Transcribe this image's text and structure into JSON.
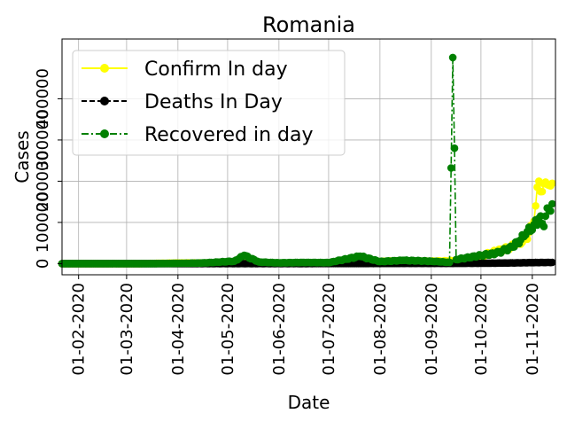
{
  "chart_data": {
    "type": "line",
    "title": "Romania",
    "xlabel": "Date",
    "ylabel": "Cases",
    "x_range": [
      "2020-01-22",
      "2020-11-15"
    ],
    "ylim": [
      -27000,
      545000
    ],
    "x_ticks": [
      {
        "date": "2020-02-01",
        "label": "01-02-2020"
      },
      {
        "date": "2020-03-01",
        "label": "01-03-2020"
      },
      {
        "date": "2020-04-01",
        "label": "01-04-2020"
      },
      {
        "date": "2020-05-01",
        "label": "01-05-2020"
      },
      {
        "date": "2020-06-01",
        "label": "01-06-2020"
      },
      {
        "date": "2020-07-01",
        "label": "01-07-2020"
      },
      {
        "date": "2020-08-01",
        "label": "01-08-2020"
      },
      {
        "date": "2020-09-01",
        "label": "01-09-2020"
      },
      {
        "date": "2020-10-01",
        "label": "01-10-2020"
      },
      {
        "date": "2020-11-01",
        "label": "01-11-2020"
      }
    ],
    "y_ticks": [
      {
        "value": 0,
        "label": "0"
      },
      {
        "value": 100000,
        "label": "100000"
      },
      {
        "value": 200000,
        "label": "200000"
      },
      {
        "value": 300000,
        "label": "300000"
      },
      {
        "value": 400000,
        "label": "400000"
      }
    ],
    "grid": true,
    "legend_position": "top-left",
    "series": [
      {
        "name": "Confirm In day",
        "color": "#ffff00",
        "line_style": "solid",
        "points": [
          [
            "2020-01-22",
            0
          ],
          [
            "2020-02-15",
            0
          ],
          [
            "2020-03-10",
            200
          ],
          [
            "2020-04-01",
            1500
          ],
          [
            "2020-04-15",
            1600
          ],
          [
            "2020-05-01",
            1200
          ],
          [
            "2020-05-15",
            900
          ],
          [
            "2020-06-01",
            800
          ],
          [
            "2020-06-15",
            900
          ],
          [
            "2020-07-01",
            2000
          ],
          [
            "2020-07-15",
            3500
          ],
          [
            "2020-08-01",
            5000
          ],
          [
            "2020-08-10",
            6500
          ],
          [
            "2020-08-20",
            5500
          ],
          [
            "2020-09-01",
            6000
          ],
          [
            "2020-09-15",
            7000
          ],
          [
            "2020-09-25",
            12000
          ],
          [
            "2020-10-01",
            18000
          ],
          [
            "2020-10-08",
            28000
          ],
          [
            "2020-10-15",
            35000
          ],
          [
            "2020-10-22",
            45000
          ],
          [
            "2020-10-28",
            60000
          ],
          [
            "2020-11-01",
            90000
          ],
          [
            "2020-11-03",
            140000
          ],
          [
            "2020-11-05",
            200000
          ],
          [
            "2020-11-07",
            175000
          ],
          [
            "2020-11-09",
            198000
          ],
          [
            "2020-11-11",
            190000
          ],
          [
            "2020-11-13",
            195000
          ]
        ]
      },
      {
        "name": "Deaths In Day",
        "color": "#000000",
        "line_style": "dashed",
        "points": [
          [
            "2020-01-22",
            0
          ],
          [
            "2020-03-15",
            0
          ],
          [
            "2020-04-15",
            200
          ],
          [
            "2020-05-15",
            200
          ],
          [
            "2020-06-15",
            200
          ],
          [
            "2020-07-15",
            300
          ],
          [
            "2020-08-15",
            600
          ],
          [
            "2020-09-15",
            700
          ],
          [
            "2020-10-01",
            900
          ],
          [
            "2020-10-15",
            1500
          ],
          [
            "2020-11-01",
            2500
          ],
          [
            "2020-11-13",
            3000
          ]
        ]
      },
      {
        "name": "Recovered in day",
        "color": "#008000",
        "line_style": "dashdot",
        "points": [
          [
            "2020-01-22",
            0
          ],
          [
            "2020-03-15",
            0
          ],
          [
            "2020-04-15",
            1500
          ],
          [
            "2020-05-05",
            6000
          ],
          [
            "2020-05-11",
            20000
          ],
          [
            "2020-05-20",
            4000
          ],
          [
            "2020-06-01",
            2000
          ],
          [
            "2020-06-15",
            3000
          ],
          [
            "2020-07-01",
            2500
          ],
          [
            "2020-07-20",
            18000
          ],
          [
            "2020-08-01",
            5000
          ],
          [
            "2020-08-15",
            8000
          ],
          [
            "2020-09-01",
            6000
          ],
          [
            "2020-09-12",
            3000
          ],
          [
            "2020-09-14",
            500000
          ],
          [
            "2020-09-16",
            10000
          ],
          [
            "2020-10-01",
            20000
          ],
          [
            "2020-10-10",
            25000
          ],
          [
            "2020-10-20",
            40000
          ],
          [
            "2020-10-28",
            70000
          ],
          [
            "2020-11-02",
            95000
          ],
          [
            "2020-11-05",
            110000
          ],
          [
            "2020-11-08",
            90000
          ],
          [
            "2020-11-10",
            135000
          ],
          [
            "2020-11-13",
            145000
          ]
        ]
      }
    ]
  }
}
